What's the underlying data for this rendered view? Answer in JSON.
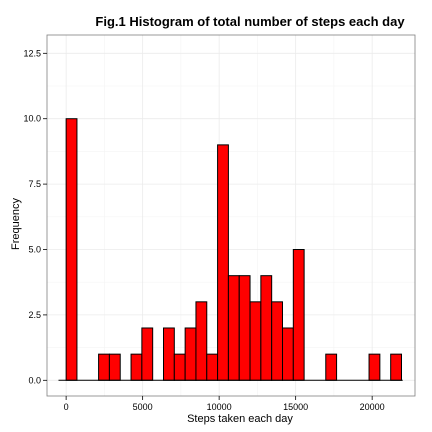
{
  "chart_data": {
    "type": "bar",
    "title": "Fig.1 Histogram of total number of steps each day",
    "xlabel": "Steps taken each day",
    "ylabel": "Frequency",
    "bin_width": 707,
    "bins": [
      {
        "x": 0,
        "count": 0
      },
      {
        "x": 354,
        "count": 10
      },
      {
        "x": 2475,
        "count": 1
      },
      {
        "x": 3182,
        "count": 1
      },
      {
        "x": 4596,
        "count": 1
      },
      {
        "x": 5303,
        "count": 2
      },
      {
        "x": 6717,
        "count": 2
      },
      {
        "x": 7424,
        "count": 1
      },
      {
        "x": 8131,
        "count": 2
      },
      {
        "x": 8838,
        "count": 3
      },
      {
        "x": 9545,
        "count": 1
      },
      {
        "x": 10252,
        "count": 9
      },
      {
        "x": 10959,
        "count": 4
      },
      {
        "x": 11666,
        "count": 4
      },
      {
        "x": 12373,
        "count": 3
      },
      {
        "x": 13080,
        "count": 4
      },
      {
        "x": 13787,
        "count": 3
      },
      {
        "x": 14494,
        "count": 2
      },
      {
        "x": 15201,
        "count": 5
      },
      {
        "x": 17322,
        "count": 1
      },
      {
        "x": 20150,
        "count": 1
      },
      {
        "x": 21564,
        "count": 1
      }
    ],
    "xlim": [
      -1250,
      22800
    ],
    "ylim": [
      -0.6,
      13.2
    ],
    "x_ticks": [
      0,
      5000,
      10000,
      15000,
      20000
    ],
    "x_tick_labels": [
      "0",
      "5000",
      "10000",
      "15000",
      "20000"
    ],
    "y_ticks": [
      0,
      2.5,
      5,
      7.5,
      10,
      12.5
    ],
    "y_tick_labels": [
      "0.0",
      "2.5",
      "5.0",
      "7.5",
      "10.0",
      "12.5"
    ],
    "baseline_range": [
      -500,
      22000
    ],
    "grid": true,
    "colors": {
      "bar_fill": "#ff0000",
      "bar_stroke": "#000000",
      "grid": "#ebebeb",
      "panel_border": "#7f7f7f",
      "background": "#ffffff"
    }
  }
}
